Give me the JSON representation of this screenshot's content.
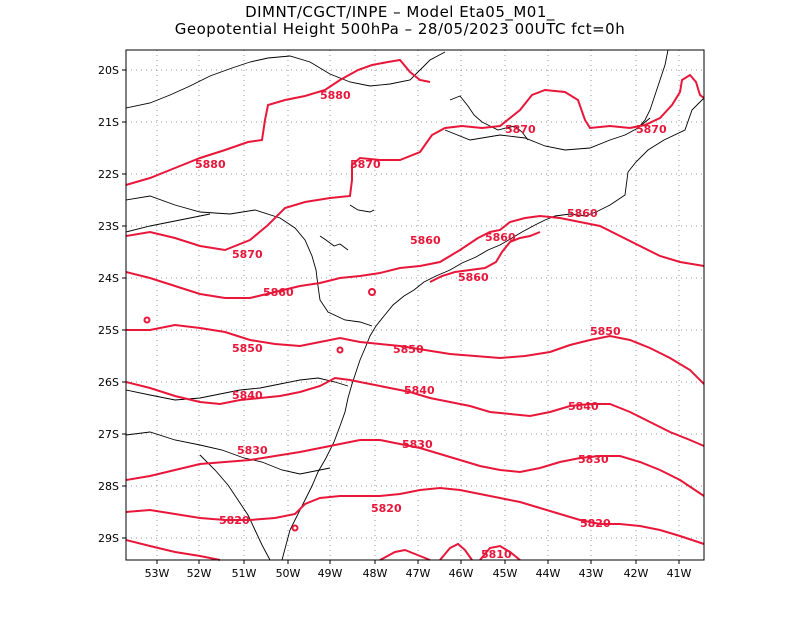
{
  "title": {
    "line1": "DIMNT/CGCT/INPE –  Model Eta05_M01_",
    "line2": "Geopotential Height 500hPa –  28/05/2023 00UTC fct=0h"
  },
  "colors": {
    "contour": "#e8173a",
    "coast": "#000000",
    "grid": "#9a9a9a",
    "frame": "#000000"
  },
  "axes": {
    "lon_labels": [
      "53W",
      "52W",
      "51W",
      "50W",
      "49W",
      "48W",
      "47W",
      "46W",
      "45W",
      "44W",
      "43W",
      "42W",
      "41W"
    ],
    "lat_labels": [
      "20S",
      "21S",
      "22S",
      "23S",
      "24S",
      "25S",
      "26S",
      "27S",
      "28S",
      "29S"
    ],
    "lon_range": [
      -53.6,
      -40.4
    ],
    "lat_range": [
      -29.4,
      -19.7
    ]
  },
  "contours": [
    {
      "value": 5880,
      "labels": [
        "5880",
        "5880"
      ]
    },
    {
      "value": 5870,
      "labels": [
        "5870",
        "5870",
        "5870",
        "5870"
      ]
    },
    {
      "value": 5860,
      "labels": [
        "5860",
        "5860",
        "5860",
        "5860",
        "5860"
      ]
    },
    {
      "value": 5850,
      "labels": [
        "5850",
        "5850",
        "5850"
      ]
    },
    {
      "value": 5840,
      "labels": [
        "5840",
        "5840",
        "5840"
      ]
    },
    {
      "value": 5830,
      "labels": [
        "5830",
        "5830",
        "5830"
      ]
    },
    {
      "value": 5820,
      "labels": [
        "5820",
        "5820",
        "5820"
      ]
    },
    {
      "value": 5810,
      "labels": [
        "5810"
      ]
    }
  ]
}
